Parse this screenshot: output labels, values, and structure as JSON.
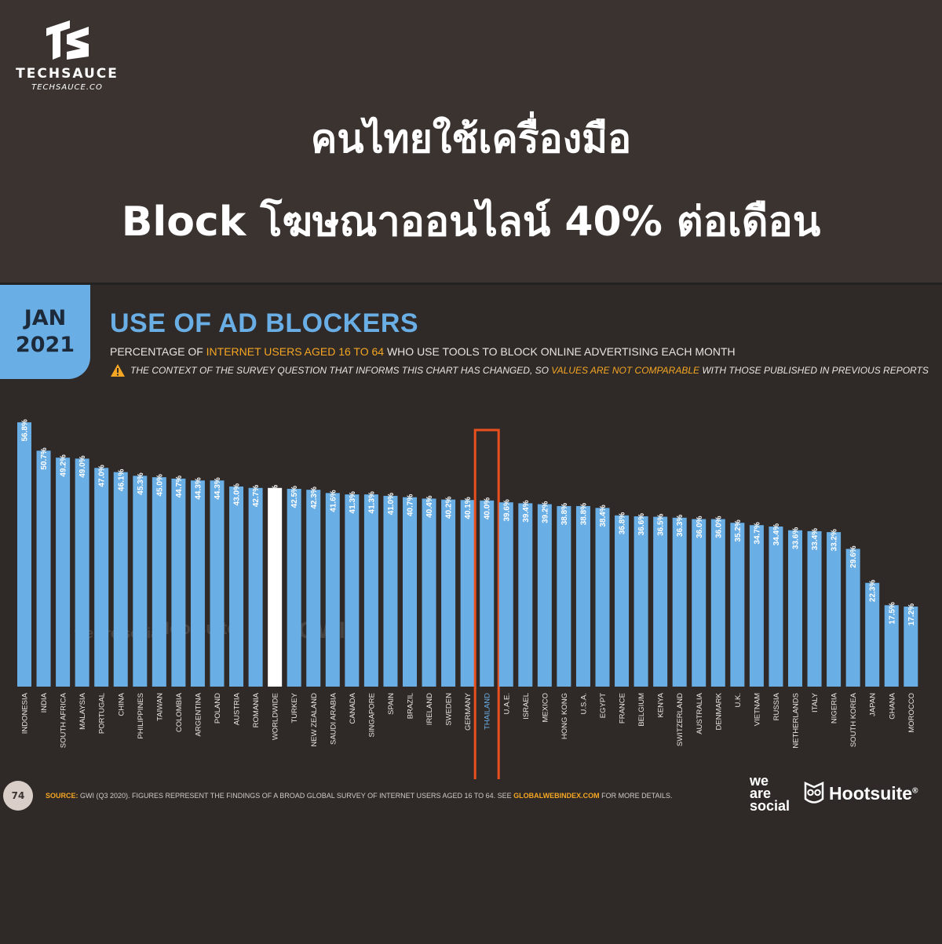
{
  "logo": {
    "brand": "TECHSAUCE",
    "site": "TECHSAUCE.CO",
    "icon": "techsauce-logo-icon"
  },
  "headline": {
    "line1": "คนไทยใช้เครื่องมือ",
    "line2": "Block โฆษณาออนไลน์ 40% ต่อเดือน"
  },
  "slide": {
    "date_month": "JAN",
    "date_year": "2021",
    "title": "USE OF AD BLOCKERS",
    "subtitle_pre": "PERCENTAGE OF ",
    "subtitle_highlight": "INTERNET USERS AGED 16 TO 64",
    "subtitle_post": " WHO USE TOOLS TO BLOCK ONLINE ADVERTISING EACH MONTH",
    "warning_pre": "THE CONTEXT OF THE SURVEY QUESTION THAT INFORMS THIS CHART HAS CHANGED, SO ",
    "warning_highlight": "VALUES ARE NOT COMPARABLE",
    "warning_post": " WITH THOSE PUBLISHED IN PREVIOUS REPORTS",
    "watermarks": [
      "we are social",
      "Hootsuite",
      "GWI."
    ],
    "page_number": "74",
    "source_label": "SOURCE:",
    "source_text": " GWI (Q3 2020). FIGURES REPRESENT THE FINDINGS OF A BROAD GLOBAL SURVEY OF INTERNET USERS AGED 16 TO 64. SEE ",
    "source_url": "GLOBALWEBINDEX.COM",
    "source_post": " FOR MORE DETAILS.",
    "footer_logo_1": "we are social",
    "footer_logo_2": "Hootsuite"
  },
  "colors": {
    "bar": "#6aaee6",
    "worldwide_bar": "#ffffff",
    "highlight_box": "#e8501e",
    "accent": "#f5a623"
  },
  "chart_data": {
    "type": "bar",
    "title": "USE OF AD BLOCKERS",
    "ylim": [
      0,
      60
    ],
    "categories": [
      "INDONESIA",
      "INDIA",
      "SOUTH AFRICA",
      "MALAYSIA",
      "PORTUGAL",
      "CHINA",
      "PHILIPPINES",
      "TAIWAN",
      "COLOMBIA",
      "ARGENTINA",
      "POLAND",
      "AUSTRIA",
      "ROMANIA",
      "WORLDWIDE",
      "TURKEY",
      "NEW ZEALAND",
      "SAUDI ARABIA",
      "CANADA",
      "SINGAPORE",
      "SPAIN",
      "BRAZIL",
      "IRELAND",
      "SWEDEN",
      "GERMANY",
      "THAILAND",
      "U.A.E.",
      "ISRAEL",
      "MEXICO",
      "HONG KONG",
      "U.S.A.",
      "EGYPT",
      "FRANCE",
      "BELGIUM",
      "KENYA",
      "SWITZERLAND",
      "AUSTRALIA",
      "DENMARK",
      "U.K.",
      "VIETNAM",
      "RUSSIA",
      "NETHERLANDS",
      "ITALY",
      "NIGERIA",
      "SOUTH KOREA",
      "JAPAN",
      "GHANA",
      "MOROCCO"
    ],
    "values": [
      56.8,
      50.7,
      49.2,
      49.0,
      47.0,
      46.1,
      45.3,
      45.0,
      44.7,
      44.3,
      44.3,
      43.0,
      42.7,
      42.7,
      42.5,
      42.3,
      41.6,
      41.3,
      41.3,
      41.0,
      40.7,
      40.4,
      40.2,
      40.1,
      40.0,
      39.6,
      39.4,
      39.2,
      38.8,
      38.8,
      38.4,
      36.8,
      36.6,
      36.5,
      36.3,
      36.0,
      36.0,
      35.2,
      34.7,
      34.4,
      33.6,
      33.4,
      33.2,
      29.6,
      22.3,
      17.5,
      17.2
    ],
    "value_labels": [
      "56.8%",
      "50.7%",
      "49.2%",
      "49.0%",
      "47.0%",
      "46.1%",
      "45.3%",
      "45.0%",
      "44.7%",
      "44.3%",
      "44.3%",
      "43.0%",
      "42.7%",
      "42.7%",
      "42.5%",
      "42.3%",
      "41.6%",
      "41.3%",
      "41.3%",
      "41.0%",
      "40.7%",
      "40.4%",
      "40.2%",
      "40.1%",
      "40.0%",
      "39.6%",
      "39.4%",
      "39.2%",
      "38.8%",
      "38.8%",
      "38.4%",
      "36.8%",
      "36.6%",
      "36.5%",
      "36.3%",
      "36.0%",
      "36.0%",
      "35.2%",
      "34.7%",
      "34.4%",
      "33.6%",
      "33.4%",
      "33.2%",
      "29.6%",
      "22.3%",
      "17.5%",
      "17.2%"
    ],
    "highlight_category": "THAILAND",
    "emphasized_category": "WORLDWIDE"
  }
}
